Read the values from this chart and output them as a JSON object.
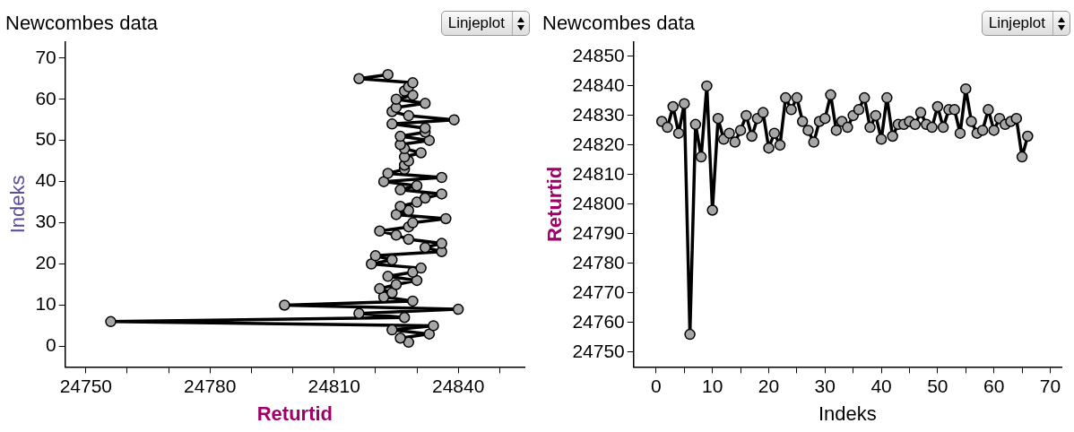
{
  "chart_data": [
    {
      "type": "line",
      "title": "Newcombes data",
      "xlabel": "Returtid",
      "ylabel": "Indeks",
      "annotations": [
        "Linjeplot"
      ],
      "marker": "circle",
      "grid": false,
      "legend": false,
      "xlim": [
        24745,
        24856
      ],
      "xticks": [
        24750,
        {
          "value": 24760,
          "label": null
        },
        {
          "value": 24770,
          "label": null
        },
        24780,
        {
          "value": 24790,
          "label": null
        },
        {
          "value": 24800,
          "label": null
        },
        24810,
        {
          "value": 24820,
          "label": null
        },
        {
          "value": 24830,
          "label": null
        },
        24840,
        {
          "value": 24850,
          "label": null
        }
      ],
      "ylim": [
        -5,
        74
      ],
      "yticks": [
        0,
        10,
        20,
        30,
        40,
        50,
        60,
        70
      ],
      "series": [
        {
          "color": "#000000",
          "x": [
            24828,
            24826,
            24833,
            24824,
            24834,
            24756,
            24827,
            24816,
            24840,
            24798,
            24829,
            24822,
            24824,
            24821,
            24825,
            24830,
            24823,
            24829,
            24831,
            24819,
            24824,
            24820,
            24836,
            24832,
            24836,
            24828,
            24825,
            24821,
            24828,
            24829,
            24837,
            24825,
            24828,
            24826,
            24830,
            24832,
            24836,
            24826,
            24830,
            24822,
            24836,
            24823,
            24827,
            24827,
            24828,
            24827,
            24831,
            24827,
            24826,
            24833,
            24826,
            24832,
            24832,
            24824,
            24839,
            24828,
            24824,
            24825,
            24832,
            24825,
            24829,
            24827,
            24828,
            24829,
            24816,
            24823
          ],
          "values": [
            1,
            2,
            3,
            4,
            5,
            6,
            7,
            8,
            9,
            10,
            11,
            12,
            13,
            14,
            15,
            16,
            17,
            18,
            19,
            20,
            21,
            22,
            23,
            24,
            25,
            26,
            27,
            28,
            29,
            30,
            31,
            32,
            33,
            34,
            35,
            36,
            37,
            38,
            39,
            40,
            41,
            42,
            43,
            44,
            45,
            46,
            47,
            48,
            49,
            50,
            51,
            52,
            53,
            54,
            55,
            56,
            57,
            58,
            59,
            60,
            61,
            62,
            63,
            64,
            65,
            66
          ]
        }
      ]
    },
    {
      "type": "line",
      "title": "Newcombes data",
      "xlabel": "Indeks",
      "ylabel": "Returtid",
      "annotations": [
        "Linjeplot"
      ],
      "marker": "circle",
      "grid": false,
      "legend": false,
      "xlim": [
        -4,
        72
      ],
      "xticks": [
        0,
        {
          "value": 5,
          "label": null
        },
        10,
        {
          "value": 15,
          "label": null
        },
        20,
        {
          "value": 25,
          "label": null
        },
        30,
        {
          "value": 35,
          "label": null
        },
        40,
        {
          "value": 45,
          "label": null
        },
        50,
        {
          "value": 55,
          "label": null
        },
        60,
        {
          "value": 65,
          "label": null
        },
        70
      ],
      "ylim": [
        24745,
        24855
      ],
      "yticks": [
        24750,
        24760,
        24770,
        24780,
        24790,
        24800,
        24810,
        24820,
        24830,
        24840,
        24850
      ],
      "series": [
        {
          "color": "#000000",
          "x": [
            1,
            2,
            3,
            4,
            5,
            6,
            7,
            8,
            9,
            10,
            11,
            12,
            13,
            14,
            15,
            16,
            17,
            18,
            19,
            20,
            21,
            22,
            23,
            24,
            25,
            26,
            27,
            28,
            29,
            30,
            31,
            32,
            33,
            34,
            35,
            36,
            37,
            38,
            39,
            40,
            41,
            42,
            43,
            44,
            45,
            46,
            47,
            48,
            49,
            50,
            51,
            52,
            53,
            54,
            55,
            56,
            57,
            58,
            59,
            60,
            61,
            62,
            63,
            64,
            65,
            66
          ],
          "values": [
            24828,
            24826,
            24833,
            24824,
            24834,
            24756,
            24827,
            24816,
            24840,
            24798,
            24829,
            24822,
            24824,
            24821,
            24825,
            24830,
            24823,
            24829,
            24831,
            24819,
            24824,
            24820,
            24836,
            24832,
            24836,
            24828,
            24825,
            24821,
            24828,
            24829,
            24837,
            24825,
            24828,
            24826,
            24830,
            24832,
            24836,
            24826,
            24830,
            24822,
            24836,
            24823,
            24827,
            24827,
            24828,
            24827,
            24831,
            24827,
            24826,
            24833,
            24826,
            24832,
            24832,
            24824,
            24839,
            24828,
            24824,
            24825,
            24832,
            24825,
            24829,
            24827,
            24828,
            24829,
            24816,
            24823
          ]
        }
      ]
    }
  ]
}
